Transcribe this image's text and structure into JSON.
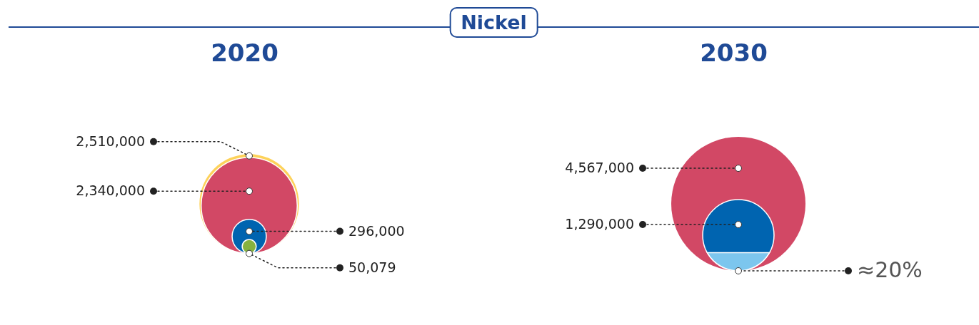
{
  "chart_data": [
    {
      "type": "other",
      "title": "Nickel"
    },
    {
      "type": "other",
      "title": "2020",
      "series": [
        {
          "values": [
            2510000,
            2340000,
            296000,
            50079
          ],
          "colors": [
            "#fdd25a",
            "#d24865",
            "#0064b0",
            "#86b23f"
          ],
          "value_labels": [
            "2,510,000",
            "2,340,000",
            "296,000",
            "50,079"
          ]
        }
      ]
    },
    {
      "type": "other",
      "title": "2030",
      "series": [
        {
          "values": [
            4567000,
            1290000
          ],
          "colors": [
            "#d24865",
            "#0064b0"
          ],
          "value_labels": [
            "4,567,000",
            "1,290,000"
          ]
        }
      ]
    },
    {
      "type": "other",
      "values": [
        20
      ],
      "colors": [
        "#7cc6ee"
      ],
      "value_labels": [
        "≈20%"
      ]
    }
  ]
}
